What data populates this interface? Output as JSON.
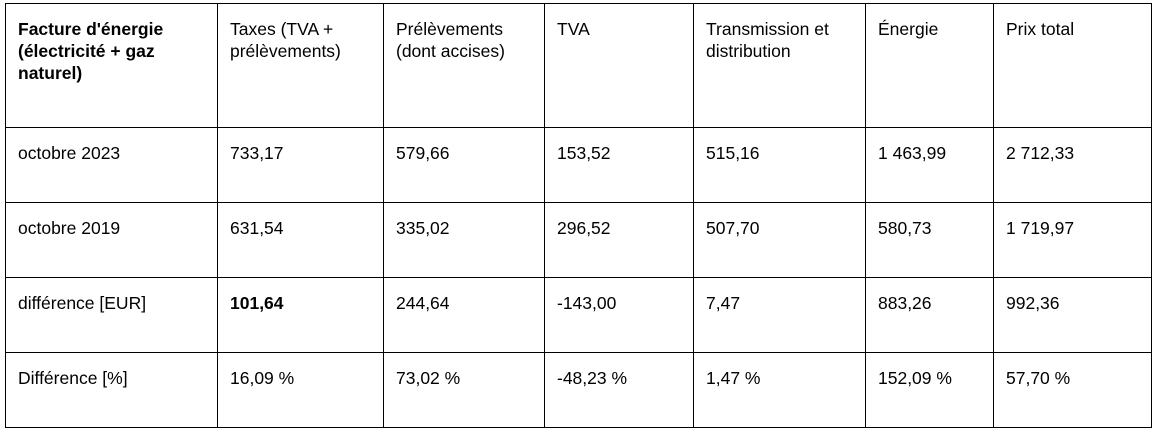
{
  "table": {
    "header": [
      "Facture d'énergie (électricité + gaz naturel)",
      "Taxes (TVA + prélèvements)",
      "Prélèvements (dont accises)",
      "TVA",
      "Transmission et distribution",
      "Énergie",
      "Prix total"
    ],
    "rows": [
      [
        "octobre 2023",
        "733,17",
        "579,66",
        "153,52",
        "515,16",
        "1 463,99",
        "2 712,33"
      ],
      [
        "octobre 2019",
        "631,54",
        "335,02",
        "296,52",
        "507,70",
        "580,73",
        "1 719,97"
      ],
      [
        "différence [EUR]",
        "101,64",
        "244,64",
        "-143,00",
        "7,47",
        "883,26",
        "992,36"
      ],
      [
        "Différence [%]",
        "16,09 %",
        "73,02 %",
        "-48,23 %",
        "1,47 %",
        "152,09 %",
        "57,70 %"
      ]
    ]
  }
}
